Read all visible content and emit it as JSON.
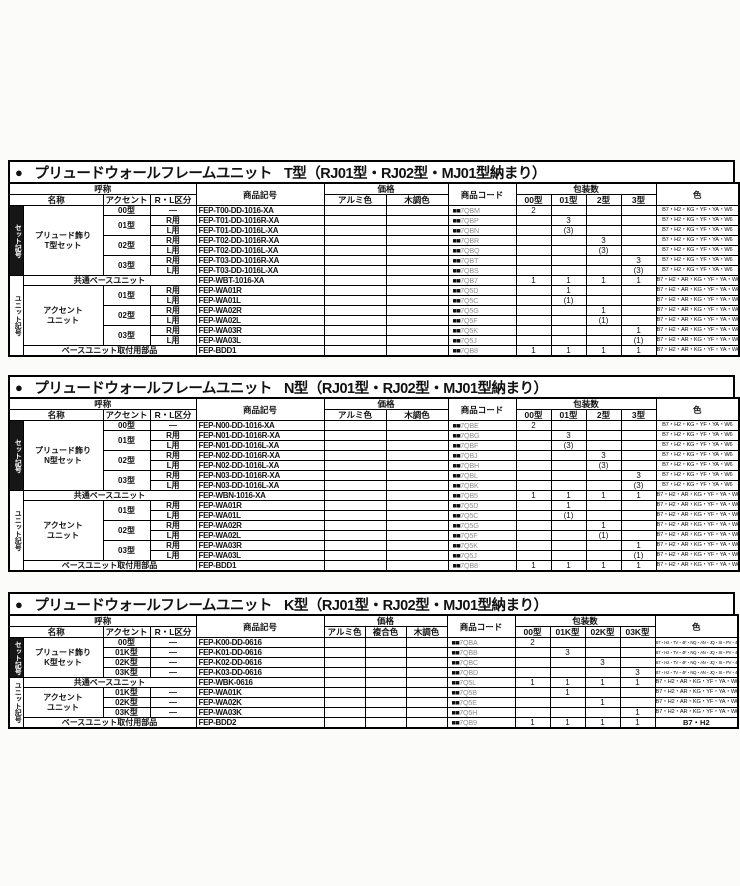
{
  "page": {
    "background": "#fbfbf9"
  },
  "tables": [
    {
      "id": "t",
      "title_bullet": "●",
      "title_main": "プリュードウォールフレームユニット",
      "title_type": "T型（RJ01型・RJ02型・MJ01型納まり）",
      "code_prefix": "■■",
      "headers": {
        "nick": "呼称",
        "name": "名称",
        "accent": "アクセント",
        "rl": "R・L区分",
        "item": "商品記号",
        "price": "価格",
        "pcode": "商品コード",
        "pack": "包装数",
        "color": "色"
      },
      "price_cols": [
        "アルミ色",
        "木調色"
      ],
      "pack_cols": [
        "00型",
        "01型",
        "2型",
        "3型"
      ],
      "groups": [
        {
          "label": "セット記号",
          "style": "dark",
          "rows": [
            {
              "name": "プリュード飾り\nT型セット",
              "name_span": 7,
              "accent": "00型",
              "accent_span": 1,
              "rl": "—",
              "item": "FEP-T00-DD-1016-XA",
              "pcode": "7QBM",
              "pack": [
                "2",
                "",
                "",
                ""
              ],
              "color": "B7・H2・KG・YF・YA・W6"
            },
            {
              "accent": "01型",
              "accent_span": 2,
              "rl": "R用",
              "item": "FEP-T01-DD-1016R-XA",
              "pcode": "7QBP",
              "pack": [
                "",
                "3",
                "",
                ""
              ],
              "color": "B7・H2・KG・YF・YA・W6"
            },
            {
              "rl": "L用",
              "item": "FEP-T01-DD-1016L-XA",
              "pcode": "7QBN",
              "pack": [
                "",
                "(3)",
                "",
                ""
              ],
              "color": "B7・H2・KG・YF・YA・W6"
            },
            {
              "accent": "02型",
              "accent_span": 2,
              "rl": "R用",
              "item": "FEP-T02-DD-1016R-XA",
              "pcode": "7QBR",
              "pack": [
                "",
                "",
                "3",
                ""
              ],
              "color": "B7・H2・KG・YF・YA・W6"
            },
            {
              "rl": "L用",
              "item": "FEP-T02-DD-1016L-XA",
              "pcode": "7QBQ",
              "pack": [
                "",
                "",
                "(3)",
                ""
              ],
              "color": "B7・H2・KG・YF・YA・W6"
            },
            {
              "accent": "03型",
              "accent_span": 2,
              "rl": "R用",
              "item": "FEP-T03-DD-1016R-XA",
              "pcode": "7QBT",
              "pack": [
                "",
                "",
                "",
                "3"
              ],
              "color": "B7・H2・KG・YF・YA・W6"
            },
            {
              "rl": "L用",
              "item": "FEP-T03-DD-1016L-XA",
              "pcode": "7QBS",
              "pack": [
                "",
                "",
                "",
                "(3)"
              ],
              "color": "B7・H2・KG・YF・YA・W6"
            }
          ]
        },
        {
          "label": "ユニット記号",
          "style": "light",
          "rows": [
            {
              "wide": "共通ベースユニット",
              "item": "FEP-WBT-1016-XA",
              "pcode": "7QB7",
              "pack": [
                "1",
                "1",
                "1",
                "1"
              ],
              "color": "B7・H2・AR・KG・YF・YA・W6"
            },
            {
              "name": "アクセント\nユニット",
              "name_span": 6,
              "accent": "01型",
              "accent_span": 2,
              "rl": "R用",
              "item": "FEP-WA01R",
              "pcode": "7Q5D",
              "pack": [
                "",
                "1",
                "",
                ""
              ],
              "color": "B7・H2・AR・KG・YF・YA・W6"
            },
            {
              "rl": "L用",
              "item": "FEP-WA01L",
              "pcode": "7Q5C",
              "pack": [
                "",
                "(1)",
                "",
                ""
              ],
              "color": "B7・H2・AR・KG・YF・YA・W6"
            },
            {
              "accent": "02型",
              "accent_span": 2,
              "rl": "R用",
              "item": "FEP-WA02R",
              "pcode": "7Q5G",
              "pack": [
                "",
                "",
                "1",
                ""
              ],
              "color": "B7・H2・AR・KG・YF・YA・W6"
            },
            {
              "rl": "L用",
              "item": "FEP-WA02L",
              "pcode": "7Q5F",
              "pack": [
                "",
                "",
                "(1)",
                ""
              ],
              "color": "B7・H2・AR・KG・YF・YA・W6"
            },
            {
              "accent": "03型",
              "accent_span": 2,
              "rl": "R用",
              "item": "FEP-WA03R",
              "pcode": "7Q5K",
              "pack": [
                "",
                "",
                "",
                "1"
              ],
              "color": "B7・H2・AR・KG・YF・YA・W6"
            },
            {
              "rl": "L用",
              "item": "FEP-WA03L",
              "pcode": "7Q5J",
              "pack": [
                "",
                "",
                "",
                "(1)"
              ],
              "color": "B7・H2・AR・KG・YF・YA・W6"
            },
            {
              "wide": "ベースユニット取付用部品",
              "item": "FEP-BDD1",
              "pcode": "7QB8",
              "pack": [
                "1",
                "1",
                "1",
                "1"
              ],
              "color": "B7・H2・AR・KG・YF・YA・W6"
            }
          ]
        }
      ]
    },
    {
      "id": "n",
      "title_bullet": "●",
      "title_main": "プリュードウォールフレームユニット",
      "title_type": "N型（RJ01型・RJ02型・MJ01型納まり）",
      "code_prefix": "■■",
      "headers": {
        "nick": "呼称",
        "name": "名称",
        "accent": "アクセント",
        "rl": "R・L区分",
        "item": "商品記号",
        "price": "価格",
        "pcode": "商品コード",
        "pack": "包装数",
        "color": "色"
      },
      "price_cols": [
        "アルミ色",
        "木調色"
      ],
      "pack_cols": [
        "00型",
        "01型",
        "2型",
        "3型"
      ],
      "groups": [
        {
          "label": "セット記号",
          "style": "dark",
          "rows": [
            {
              "name": "プリュード飾り\nN型セット",
              "name_span": 7,
              "accent": "00型",
              "accent_span": 1,
              "rl": "—",
              "item": "FEP-N00-DD-1016-XA",
              "pcode": "7QBE",
              "pack": [
                "2",
                "",
                "",
                ""
              ],
              "color": "B7・H2・KG・YF・YA・W6"
            },
            {
              "accent": "01型",
              "accent_span": 2,
              "rl": "R用",
              "item": "FEP-N01-DD-1016R-XA",
              "pcode": "7QBG",
              "pack": [
                "",
                "3",
                "",
                ""
              ],
              "color": "B7・H2・KG・YF・YA・W6"
            },
            {
              "rl": "L用",
              "item": "FEP-N01-DD-1016L-XA",
              "pcode": "7QBF",
              "pack": [
                "",
                "(3)",
                "",
                ""
              ],
              "color": "B7・H2・KG・YF・YA・W6"
            },
            {
              "accent": "02型",
              "accent_span": 2,
              "rl": "R用",
              "item": "FEP-N02-DD-1016R-XA",
              "pcode": "7QBJ",
              "pack": [
                "",
                "",
                "3",
                ""
              ],
              "color": "B7・H2・KG・YF・YA・W6"
            },
            {
              "rl": "L用",
              "item": "FEP-N02-DD-1016L-XA",
              "pcode": "7QBH",
              "pack": [
                "",
                "",
                "(3)",
                ""
              ],
              "color": "B7・H2・KG・YF・YA・W6"
            },
            {
              "accent": "03型",
              "accent_span": 2,
              "rl": "R用",
              "item": "FEP-N03-DD-1016R-XA",
              "pcode": "7QBL",
              "pack": [
                "",
                "",
                "",
                "3"
              ],
              "color": "B7・H2・KG・YF・YA・W6"
            },
            {
              "rl": "L用",
              "item": "FEP-N03-DD-1016L-XA",
              "pcode": "7QBK",
              "pack": [
                "",
                "",
                "",
                "(3)"
              ],
              "color": "B7・H2・KG・YF・YA・W6"
            }
          ]
        },
        {
          "label": "ユニット記号",
          "style": "light",
          "rows": [
            {
              "wide": "共通ベースユニット",
              "item": "FEP-WBN-1016-XA",
              "pcode": "7QB5",
              "pack": [
                "1",
                "1",
                "1",
                "1"
              ],
              "color": "B7・H2・AR・KG・YF・YA・W6"
            },
            {
              "name": "アクセント\nユニット",
              "name_span": 6,
              "accent": "01型",
              "accent_span": 2,
              "rl": "R用",
              "item": "FEP-WA01R",
              "pcode": "7Q5D",
              "pack": [
                "",
                "1",
                "",
                ""
              ],
              "color": "B7・H2・AR・KG・YF・YA・W6"
            },
            {
              "rl": "L用",
              "item": "FEP-WA01L",
              "pcode": "7Q5C",
              "pack": [
                "",
                "(1)",
                "",
                ""
              ],
              "color": "B7・H2・AR・KG・YF・YA・W6"
            },
            {
              "accent": "02型",
              "accent_span": 2,
              "rl": "R用",
              "item": "FEP-WA02R",
              "pcode": "7Q5G",
              "pack": [
                "",
                "",
                "1",
                ""
              ],
              "color": "B7・H2・AR・KG・YF・YA・W6"
            },
            {
              "rl": "L用",
              "item": "FEP-WA02L",
              "pcode": "7Q5F",
              "pack": [
                "",
                "",
                "(1)",
                ""
              ],
              "color": "B7・H2・AR・KG・YF・YA・W6"
            },
            {
              "accent": "03型",
              "accent_span": 2,
              "rl": "R用",
              "item": "FEP-WA03R",
              "pcode": "7Q5K",
              "pack": [
                "",
                "",
                "",
                "1"
              ],
              "color": "B7・H2・AR・KG・YF・YA・W6"
            },
            {
              "rl": "L用",
              "item": "FEP-WA03L",
              "pcode": "7Q5J",
              "pack": [
                "",
                "",
                "",
                "(1)"
              ],
              "color": "B7・H2・AR・KG・YF・YA・W6"
            },
            {
              "wide": "ベースユニット取付用部品",
              "item": "FEP-BDD1",
              "pcode": "7QB8",
              "pack": [
                "1",
                "1",
                "1",
                "1"
              ],
              "color": "B7・H2・AR・KG・YF・YA・W6"
            }
          ]
        }
      ]
    },
    {
      "id": "k",
      "title_bullet": "●",
      "title_main": "プリュードウォールフレームユニット",
      "title_type": "K型（RJ01型・RJ02型・MJ01型納まり）",
      "code_prefix": "■■",
      "headers": {
        "nick": "呼称",
        "name": "名称",
        "accent": "アクセント",
        "rl": "R・L区分",
        "item": "商品記号",
        "price": "価格",
        "pcode": "商品コード",
        "pack": "包装数",
        "color": "色"
      },
      "price_cols": [
        "アルミ色",
        "複合色",
        "木調色"
      ],
      "pack_cols": [
        "00型",
        "01K型",
        "02K型",
        "03K型"
      ],
      "groups": [
        {
          "label": "セット記号",
          "style": "dark",
          "rows": [
            {
              "name": "プリュード飾り\nK型セット",
              "name_span": 4,
              "accent": "00型",
              "accent_span": 1,
              "rl": "—",
              "item": "FEP-K00-DD-0616",
              "pcode": "7QBA",
              "pack": [
                "2",
                "",
                "",
                ""
              ],
              "color": "B7・H2・TV・4F・NQ・AN・JQ・SI・PV・4D",
              "color_size": "tiny"
            },
            {
              "accent": "01K型",
              "accent_span": 1,
              "rl": "—",
              "item": "FEP-K01-DD-0616",
              "pcode": "7QBB",
              "pack": [
                "",
                "3",
                "",
                ""
              ],
              "color": "B7・H2・TV・4F・NQ・AN・JQ・SI・PV・4D",
              "color_size": "tiny"
            },
            {
              "accent": "02K型",
              "accent_span": 1,
              "rl": "—",
              "item": "FEP-K02-DD-0616",
              "pcode": "7QBC",
              "pack": [
                "",
                "",
                "3",
                ""
              ],
              "color": "B7・H2・TV・4F・NQ・AN・JQ・SI・PV・4D",
              "color_size": "tiny"
            },
            {
              "accent": "03K型",
              "accent_span": 1,
              "rl": "—",
              "item": "FEP-K03-DD-0616",
              "pcode": "7QBD",
              "pack": [
                "",
                "",
                "",
                "3"
              ],
              "color": "B7・H2・TV・4F・NQ・AN・JQ・SI・PV・4D",
              "color_size": "tiny"
            }
          ]
        },
        {
          "label": "ユニット記号",
          "style": "light",
          "rows": [
            {
              "wide": "共通ベースユニット",
              "item": "FEP-WBK-0616",
              "pcode": "7Q5L",
              "pack": [
                "1",
                "1",
                "1",
                "1"
              ],
              "color": "B7・H2・AR・KG・YF・YA・W6"
            },
            {
              "name": "アクセント\nユニット",
              "name_span": 3,
              "accent": "01K型",
              "accent_span": 1,
              "rl": "—",
              "item": "FEP-WA01K",
              "pcode": "7Q5B",
              "pack": [
                "",
                "1",
                "",
                ""
              ],
              "color": "B7・H2・AR・KG・YF・YA・W6"
            },
            {
              "accent": "02K型",
              "accent_span": 1,
              "rl": "—",
              "item": "FEP-WA02K",
              "pcode": "7Q5E",
              "pack": [
                "",
                "",
                "1",
                ""
              ],
              "color": "B7・H2・AR・KG・YF・YA・W6"
            },
            {
              "accent": "03K型",
              "accent_span": 1,
              "rl": "—",
              "item": "FEP-WA03K",
              "pcode": "7Q5H",
              "pack": [
                "",
                "",
                "",
                "1"
              ],
              "color": "B7・H2・AR・KG・YF・YA・W6"
            },
            {
              "wide": "ベースユニット取付用部品",
              "item": "FEP-BDD2",
              "pcode": "7QB9",
              "pack": [
                "1",
                "1",
                "1",
                "1"
              ],
              "color": "B7・H2",
              "color_size": "large"
            }
          ]
        }
      ]
    }
  ]
}
